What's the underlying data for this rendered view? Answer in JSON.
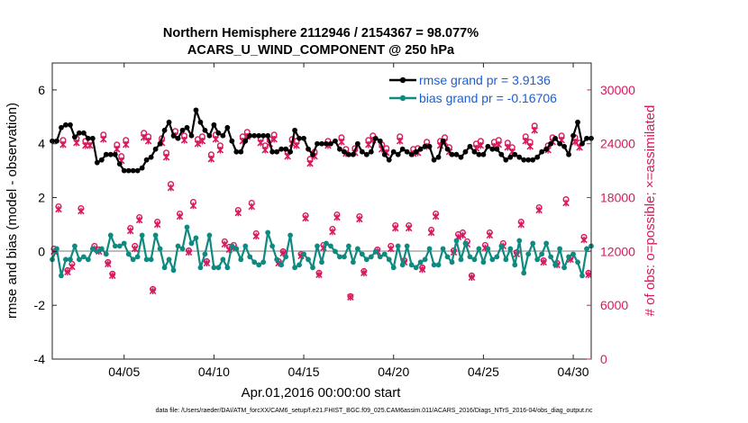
{
  "chart_data": {
    "type": "line",
    "title_line1": "Northern Hemisphere 2112946 / 2154367 = 98.077%",
    "title_line2": "ACARS_U_WIND_COMPONENT @ 250 hPa",
    "xlabel": "Apr.01,2016 00:00:00 start",
    "ylabel_left": "rmse and bias (model - observation)",
    "ylabel_right": "# of obs: o=possible; ×=assimilated",
    "footer": "data file: /Users/raeder/DAI/ATM_forcXX/CAM6_setup/f.e21.FHIST_BGC.f09_025.CAM6assim.011/ACARS_2016/Diags_NTrS_2016-04/obs_diag_output.nc",
    "xlim": [
      1,
      31
    ],
    "ylim_left": [
      -4,
      7
    ],
    "ylim_right": [
      0,
      33000
    ],
    "xticks": [
      {
        "value": 5,
        "label": "04/05"
      },
      {
        "value": 10,
        "label": "04/10"
      },
      {
        "value": 15,
        "label": "04/15"
      },
      {
        "value": 20,
        "label": "04/20"
      },
      {
        "value": 25,
        "label": "04/25"
      },
      {
        "value": 30,
        "label": "04/30"
      }
    ],
    "yticks_left": [
      {
        "value": -4,
        "label": "-4"
      },
      {
        "value": -2,
        "label": "-2"
      },
      {
        "value": 0,
        "label": "0"
      },
      {
        "value": 2,
        "label": "2"
      },
      {
        "value": 4,
        "label": "4"
      },
      {
        "value": 6,
        "label": "6"
      }
    ],
    "yticks_right": [
      {
        "value": 0,
        "label": "0"
      },
      {
        "value": 6000,
        "label": "6000"
      },
      {
        "value": 12000,
        "label": "12000"
      },
      {
        "value": 18000,
        "label": "18000"
      },
      {
        "value": 24000,
        "label": "24000"
      },
      {
        "value": 30000,
        "label": "30000"
      }
    ],
    "legend": [
      {
        "name": "rmse grand pr = 3.9136",
        "color": "#000000"
      },
      {
        "name": "bias grand pr = -0.16706",
        "color": "#0f8a80"
      }
    ],
    "colors": {
      "rmse": "#000000",
      "bias": "#0f8a80",
      "obs": "#d8195f",
      "zero_line": "#bdbdbd"
    },
    "series": [
      {
        "name": "rmse",
        "x": [
          1.0,
          1.25,
          1.5,
          1.75,
          2.0,
          2.25,
          2.5,
          2.75,
          3.0,
          3.25,
          3.5,
          3.75,
          4.0,
          4.25,
          4.5,
          4.75,
          5.0,
          5.25,
          5.5,
          5.75,
          6.0,
          6.25,
          6.5,
          6.75,
          7.0,
          7.25,
          7.5,
          7.75,
          8.0,
          8.25,
          8.5,
          8.75,
          9.0,
          9.25,
          9.5,
          9.75,
          10.0,
          10.25,
          10.5,
          10.75,
          11.0,
          11.25,
          11.5,
          11.75,
          12.0,
          12.25,
          12.5,
          12.75,
          13.0,
          13.25,
          13.5,
          13.75,
          14.0,
          14.25,
          14.5,
          14.75,
          15.0,
          15.25,
          15.5,
          15.75,
          16.0,
          16.25,
          16.5,
          16.75,
          17.0,
          17.25,
          17.5,
          17.75,
          18.0,
          18.25,
          18.5,
          18.75,
          19.0,
          19.25,
          19.5,
          19.75,
          20.0,
          20.25,
          20.5,
          20.75,
          21.0,
          21.25,
          21.5,
          21.75,
          22.0,
          22.25,
          22.5,
          22.75,
          23.0,
          23.25,
          23.5,
          23.75,
          24.0,
          24.25,
          24.5,
          24.75,
          25.0,
          25.25,
          25.5,
          25.75,
          26.0,
          26.25,
          26.5,
          26.75,
          27.0,
          27.25,
          27.5,
          27.75,
          28.0,
          28.25,
          28.5,
          28.75,
          29.0,
          29.25,
          29.5,
          29.75,
          30.0,
          30.25,
          30.5,
          30.75,
          31.0
        ],
        "values": [
          4.1,
          4.1,
          4.6,
          4.7,
          4.7,
          4.25,
          4.4,
          4.4,
          4.2,
          4.2,
          3.3,
          3.4,
          3.6,
          3.6,
          3.6,
          3.25,
          3.0,
          3.0,
          3.0,
          3.0,
          3.1,
          3.4,
          3.5,
          3.8,
          4.0,
          4.5,
          4.8,
          4.3,
          4.2,
          4.5,
          4.6,
          4.3,
          5.25,
          4.8,
          4.5,
          4.3,
          4.7,
          4.4,
          4.3,
          4.6,
          4.1,
          3.7,
          3.7,
          4.1,
          4.3,
          4.3,
          4.3,
          4.3,
          4.3,
          3.7,
          3.7,
          3.8,
          3.8,
          3.7,
          4.5,
          4.2,
          4.2,
          3.8,
          3.6,
          4.0,
          4.0,
          4.0,
          4.0,
          4.1,
          3.8,
          3.7,
          3.6,
          3.6,
          4.0,
          3.7,
          3.6,
          3.7,
          4.2,
          4.1,
          3.6,
          3.4,
          3.7,
          3.6,
          3.8,
          3.7,
          3.6,
          3.7,
          3.8,
          3.9,
          3.9,
          3.4,
          3.5,
          4.1,
          3.8,
          3.6,
          3.6,
          3.5,
          3.7,
          3.9,
          3.7,
          3.6,
          3.6,
          3.9,
          3.8,
          3.8,
          3.6,
          3.4,
          3.5,
          3.6,
          3.5,
          3.4,
          3.4,
          3.4,
          3.5,
          3.7,
          3.8,
          4.0,
          4.2,
          4.0,
          3.9,
          3.6,
          4.3,
          4.8,
          4.0,
          4.2,
          4.2
        ]
      },
      {
        "name": "bias",
        "x": [
          1.0,
          1.25,
          1.5,
          1.75,
          2.0,
          2.25,
          2.5,
          2.75,
          3.0,
          3.25,
          3.5,
          3.75,
          4.0,
          4.25,
          4.5,
          4.75,
          5.0,
          5.25,
          5.5,
          5.75,
          6.0,
          6.25,
          6.5,
          6.75,
          7.0,
          7.25,
          7.5,
          7.75,
          8.0,
          8.25,
          8.5,
          8.75,
          9.0,
          9.25,
          9.5,
          9.75,
          10.0,
          10.25,
          10.5,
          10.75,
          11.0,
          11.25,
          11.5,
          11.75,
          12.0,
          12.25,
          12.5,
          12.75,
          13.0,
          13.25,
          13.5,
          13.75,
          14.0,
          14.25,
          14.5,
          14.75,
          15.0,
          15.25,
          15.5,
          15.75,
          16.0,
          16.25,
          16.5,
          16.75,
          17.0,
          17.25,
          17.5,
          17.75,
          18.0,
          18.25,
          18.5,
          18.75,
          19.0,
          19.25,
          19.5,
          19.75,
          20.0,
          20.25,
          20.5,
          20.75,
          21.0,
          21.25,
          21.5,
          21.75,
          22.0,
          22.25,
          22.5,
          22.75,
          23.0,
          23.25,
          23.5,
          23.75,
          24.0,
          24.25,
          24.5,
          24.75,
          25.0,
          25.25,
          25.5,
          25.75,
          26.0,
          26.25,
          26.5,
          26.75,
          27.0,
          27.25,
          27.5,
          27.75,
          28.0,
          28.25,
          28.5,
          28.75,
          29.0,
          29.25,
          29.5,
          29.75,
          30.0,
          30.25,
          30.5,
          30.75,
          31.0
        ],
        "values": [
          -0.3,
          0.1,
          -0.9,
          -0.3,
          -0.3,
          0.2,
          -0.3,
          -0.2,
          -0.3,
          0.1,
          0.0,
          0.1,
          -0.1,
          0.6,
          0.2,
          0.2,
          0.3,
          -0.1,
          -0.3,
          -0.2,
          0.6,
          -0.3,
          -0.3,
          0.6,
          0.1,
          -0.6,
          -0.3,
          -0.7,
          0.2,
          0.1,
          0.9,
          0.3,
          0.5,
          -0.6,
          -0.1,
          0.6,
          -0.6,
          -0.6,
          -0.3,
          -0.6,
          0.2,
          0.1,
          -0.3,
          0.2,
          -0.2,
          -0.4,
          -0.5,
          -0.4,
          0.7,
          0.2,
          -0.3,
          -0.5,
          -0.2,
          0.6,
          -0.6,
          -0.5,
          -0.1,
          -0.3,
          -0.6,
          0.2,
          -0.4,
          0.3,
          0.2,
          0.0,
          -0.2,
          -0.2,
          0.2,
          -0.4,
          0.1,
          -0.1,
          -0.3,
          -0.2,
          0.0,
          -0.2,
          -0.1,
          -0.3,
          -0.6,
          0.2,
          -0.5,
          0.2,
          -0.5,
          -0.6,
          -0.4,
          -0.3,
          0.1,
          -0.5,
          -0.5,
          0.1,
          -0.2,
          -0.4,
          0.4,
          -0.3,
          0.3,
          -0.2,
          -0.3,
          0.1,
          -0.4,
          0.1,
          -0.3,
          -0.2,
          0.2,
          -0.3,
          0.1,
          -0.5,
          0.4,
          -0.8,
          -0.1,
          0.3,
          -0.3,
          -0.1,
          0.3,
          -0.2,
          -0.5,
          0.1,
          -0.6,
          -0.2,
          -0.1,
          -0.4,
          -0.9,
          0.1,
          0.2
        ]
      },
      {
        "name": "possible",
        "x": [
          1.1,
          1.35,
          1.6,
          1.85,
          2.1,
          2.35,
          2.6,
          2.85,
          3.1,
          3.35,
          3.6,
          3.85,
          4.1,
          4.35,
          4.6,
          4.85,
          5.1,
          5.35,
          5.6,
          5.85,
          6.1,
          6.35,
          6.6,
          6.85,
          7.1,
          7.35,
          7.6,
          7.85,
          8.1,
          8.35,
          8.6,
          8.85,
          9.1,
          9.35,
          9.6,
          9.85,
          10.1,
          10.35,
          10.6,
          10.85,
          11.1,
          11.35,
          11.6,
          11.85,
          12.1,
          12.35,
          12.6,
          12.85,
          13.1,
          13.35,
          13.6,
          13.85,
          14.1,
          14.35,
          14.6,
          14.85,
          15.1,
          15.35,
          15.6,
          15.85,
          16.1,
          16.35,
          16.6,
          16.85,
          17.1,
          17.35,
          17.6,
          17.85,
          18.1,
          18.35,
          18.6,
          18.85,
          19.1,
          19.35,
          19.6,
          19.85,
          20.1,
          20.35,
          20.6,
          20.85,
          21.1,
          21.35,
          21.6,
          21.85,
          22.1,
          22.35,
          22.6,
          22.85,
          23.1,
          23.35,
          23.6,
          23.85,
          24.1,
          24.35,
          24.6,
          24.85,
          25.1,
          25.35,
          25.6,
          25.85,
          26.1,
          26.35,
          26.6,
          26.85,
          27.1,
          27.35,
          27.6,
          27.85,
          28.1,
          28.35,
          28.6,
          28.85,
          29.1,
          29.35,
          29.6,
          29.85,
          30.1,
          30.35,
          30.6,
          30.85
        ],
        "values": [
          12300,
          17000,
          24400,
          9900,
          10600,
          24600,
          16800,
          24300,
          24300,
          12600,
          12200,
          25000,
          10800,
          9500,
          23900,
          22600,
          24400,
          14600,
          12600,
          15800,
          25200,
          24800,
          7800,
          15300,
          24600,
          23000,
          19500,
          25400,
          16200,
          24900,
          12100,
          17500,
          24500,
          24800,
          10900,
          22800,
          25000,
          23800,
          13100,
          12500,
          12700,
          16600,
          24800,
          25300,
          17400,
          14000,
          24600,
          23800,
          24500,
          25000,
          10900,
          12000,
          23100,
          24500,
          24300,
          11700,
          16000,
          22300,
          23100,
          9600,
          12700,
          24300,
          14500,
          16100,
          24700,
          23400,
          7000,
          23500,
          15900,
          9800,
          24400,
          24900,
          12200,
          23900,
          23500,
          12600,
          14900,
          24800,
          11000,
          14900,
          23400,
          23500,
          10200,
          24200,
          14400,
          16200,
          24300,
          24700,
          23600,
          12100,
          13900,
          14100,
          13100,
          9300,
          24000,
          24300,
          12700,
          14100,
          24200,
          24400,
          12900,
          24100,
          23600,
          11900,
          15300,
          24800,
          24200,
          26000,
          16900,
          11000,
          23800,
          24700,
          10700,
          24900,
          17800,
          11300,
          24700,
          24100,
          13600,
          9600
        ]
      },
      {
        "name": "assimilated",
        "x": [
          1.1,
          1.35,
          1.6,
          1.85,
          2.1,
          2.35,
          2.6,
          2.85,
          3.1,
          3.35,
          3.6,
          3.85,
          4.1,
          4.35,
          4.6,
          4.85,
          5.1,
          5.35,
          5.6,
          5.85,
          6.1,
          6.35,
          6.6,
          6.85,
          7.1,
          7.35,
          7.6,
          7.85,
          8.1,
          8.35,
          8.6,
          8.85,
          9.1,
          9.35,
          9.6,
          9.85,
          10.1,
          10.35,
          10.6,
          10.85,
          11.1,
          11.35,
          11.6,
          11.85,
          12.1,
          12.35,
          12.6,
          12.85,
          13.1,
          13.35,
          13.6,
          13.85,
          14.1,
          14.35,
          14.6,
          14.85,
          15.1,
          15.35,
          15.6,
          15.85,
          16.1,
          16.35,
          16.6,
          16.85,
          17.1,
          17.35,
          17.6,
          17.85,
          18.1,
          18.35,
          18.6,
          18.85,
          19.1,
          19.35,
          19.6,
          19.85,
          20.1,
          20.35,
          20.6,
          20.85,
          21.1,
          21.35,
          21.6,
          21.85,
          22.1,
          22.35,
          22.6,
          22.85,
          23.1,
          23.35,
          23.6,
          23.85,
          24.1,
          24.35,
          24.6,
          24.85,
          25.1,
          25.35,
          25.6,
          25.85,
          26.1,
          26.35,
          26.6,
          26.85,
          27.1,
          27.35,
          27.6,
          27.85,
          28.1,
          28.35,
          28.6,
          28.85,
          29.1,
          29.35,
          29.6,
          29.85,
          30.1,
          30.35,
          30.6,
          30.85
        ],
        "values": [
          12000,
          16700,
          23900,
          9700,
          10300,
          24100,
          16500,
          23800,
          23800,
          12300,
          12000,
          24500,
          10600,
          9300,
          23400,
          22100,
          23900,
          14300,
          12300,
          15500,
          24700,
          24300,
          7600,
          15000,
          24100,
          22500,
          19100,
          24900,
          15900,
          24400,
          11900,
          17100,
          24000,
          24300,
          10700,
          22300,
          24500,
          23300,
          12800,
          12200,
          12400,
          16300,
          24300,
          24800,
          17000,
          13700,
          24100,
          23300,
          24000,
          24500,
          10700,
          11800,
          22600,
          24000,
          23800,
          11500,
          15700,
          21800,
          22600,
          9400,
          12400,
          23800,
          14200,
          15800,
          24200,
          22900,
          6900,
          23000,
          15600,
          9600,
          23900,
          24400,
          12000,
          23400,
          23000,
          12300,
          14600,
          24300,
          10800,
          14600,
          22900,
          23000,
          10000,
          23700,
          14100,
          15900,
          23800,
          24200,
          23100,
          11900,
          13600,
          13800,
          12800,
          9100,
          23500,
          23800,
          12400,
          13800,
          23700,
          23900,
          12600,
          23600,
          23100,
          11700,
          15000,
          24300,
          23700,
          25500,
          16600,
          10800,
          23300,
          24200,
          10500,
          24400,
          17400,
          11100,
          24200,
          23600,
          13300,
          9400
        ]
      }
    ]
  }
}
